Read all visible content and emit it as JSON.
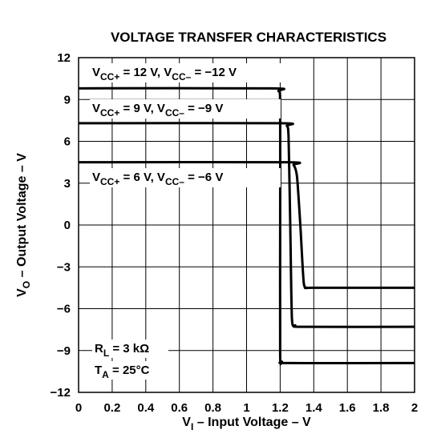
{
  "chart_data": {
    "type": "line",
    "title": "VOLTAGE TRANSFER CHARACTERISTICS",
    "xlabel": {
      "main": "V",
      "sub": "I",
      "rest": " – Input Voltage – V"
    },
    "ylabel": {
      "main": "V",
      "sub": "O",
      "rest": " – Output Voltage – V"
    },
    "xlim": [
      0,
      2
    ],
    "ylim": [
      -12,
      12
    ],
    "x_ticks": [
      0,
      0.2,
      0.4,
      0.6,
      0.8,
      1,
      1.2,
      1.4,
      1.6,
      1.8,
      2
    ],
    "x_tick_labels": [
      "0",
      "0.2",
      "0.4",
      "0.6",
      "0.8",
      "1",
      "1.2",
      "1.4",
      "1.6",
      "1.8",
      "2"
    ],
    "y_ticks": [
      12,
      9,
      6,
      3,
      0,
      -3,
      -6,
      -9,
      -12
    ],
    "y_tick_labels": [
      "12",
      "9",
      "6",
      "3",
      "0",
      "−3",
      "−6",
      "−9",
      "−12"
    ],
    "grid": true,
    "series": [
      {
        "name": "VCC+ = 12 V, VCC– = −12 V",
        "label": {
          "p1": "V",
          "s1": "CC+",
          "p2": " = 12 V, V",
          "s2": "CC–",
          "p3": " = −12 V"
        },
        "x": [
          0,
          1.15,
          1.19,
          1.2,
          1.2,
          1.2,
          1.21,
          1.25,
          2
        ],
        "y": [
          9.8,
          9.8,
          9.6,
          8.8,
          0,
          -9.3,
          -9.8,
          -9.9,
          -9.9
        ]
      },
      {
        "name": "VCC+ = 9 V, VCC– = −9 V",
        "label": {
          "p1": "V",
          "s1": "CC+",
          "p2": " = 9 V, V",
          "s2": "CC–",
          "p3": " = −9 V"
        },
        "x": [
          0,
          1.2,
          1.24,
          1.25,
          1.26,
          1.27,
          1.29,
          1.33,
          2
        ],
        "y": [
          7.3,
          7.3,
          7.1,
          6.3,
          0,
          -6.7,
          -7.2,
          -7.3,
          -7.3
        ]
      },
      {
        "name": "VCC+ = 6 V, VCC– = −6 V",
        "label": {
          "p1": "V",
          "s1": "CC+",
          "p2": " = 6 V, V",
          "s2": "CC–",
          "p3": " = −6 V"
        },
        "x": [
          0,
          1.24,
          1.28,
          1.3,
          1.32,
          1.34,
          1.36,
          1.39,
          2
        ],
        "y": [
          4.5,
          4.5,
          4.3,
          3.5,
          0,
          -4.1,
          -4.5,
          -4.5,
          -4.5
        ]
      }
    ],
    "annotations": [
      {
        "main": "R",
        "sub": "L",
        "rest": " = 3 kΩ"
      },
      {
        "main": "T",
        "sub": "A",
        "rest": " = 25°C"
      }
    ]
  }
}
